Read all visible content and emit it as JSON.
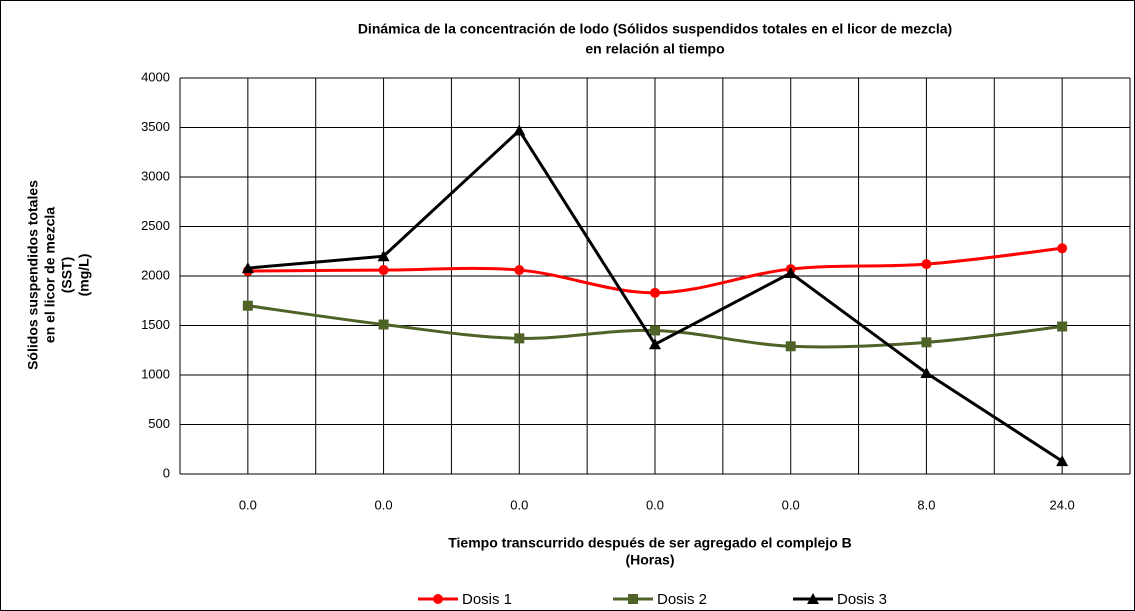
{
  "chart_data": {
    "type": "line",
    "title": [
      "Dinámica de la concentración de lodo (Sólidos suspendidos totales en el licor de mezcla)",
      "en relación al tiempo"
    ],
    "ylabel": [
      "Sólidos suspendidos totales",
      "en el licor de mezcla",
      "(SST)",
      "(mg/L)"
    ],
    "xlabel": [
      "Tiempo transcurrido  después de ser agregado el complejo B",
      "(Horas)"
    ],
    "categories": [
      "0.0",
      "0.0",
      "0.0",
      "0.0",
      "0.0",
      "8.0",
      "24.0"
    ],
    "ylim": [
      0,
      4000
    ],
    "yticks": [
      0,
      500,
      1000,
      1500,
      2000,
      2500,
      3000,
      3500,
      4000
    ],
    "grid": true,
    "legend": "bottom",
    "series": [
      {
        "name": "Dosis 1",
        "color": "#ff0000",
        "marker": "circle",
        "smooth": true,
        "values": [
          2050,
          2060,
          2060,
          1830,
          2070,
          2120,
          2280
        ]
      },
      {
        "name": "Dosis 2",
        "color": "#4f6228",
        "marker": "square",
        "smooth": true,
        "values": [
          1700,
          1510,
          1370,
          1450,
          1290,
          1330,
          1490
        ]
      },
      {
        "name": "Dosis 3",
        "color": "#000000",
        "marker": "triangle",
        "smooth": false,
        "values": [
          2080,
          2200,
          3470,
          1310,
          2030,
          1020,
          130
        ]
      }
    ]
  }
}
